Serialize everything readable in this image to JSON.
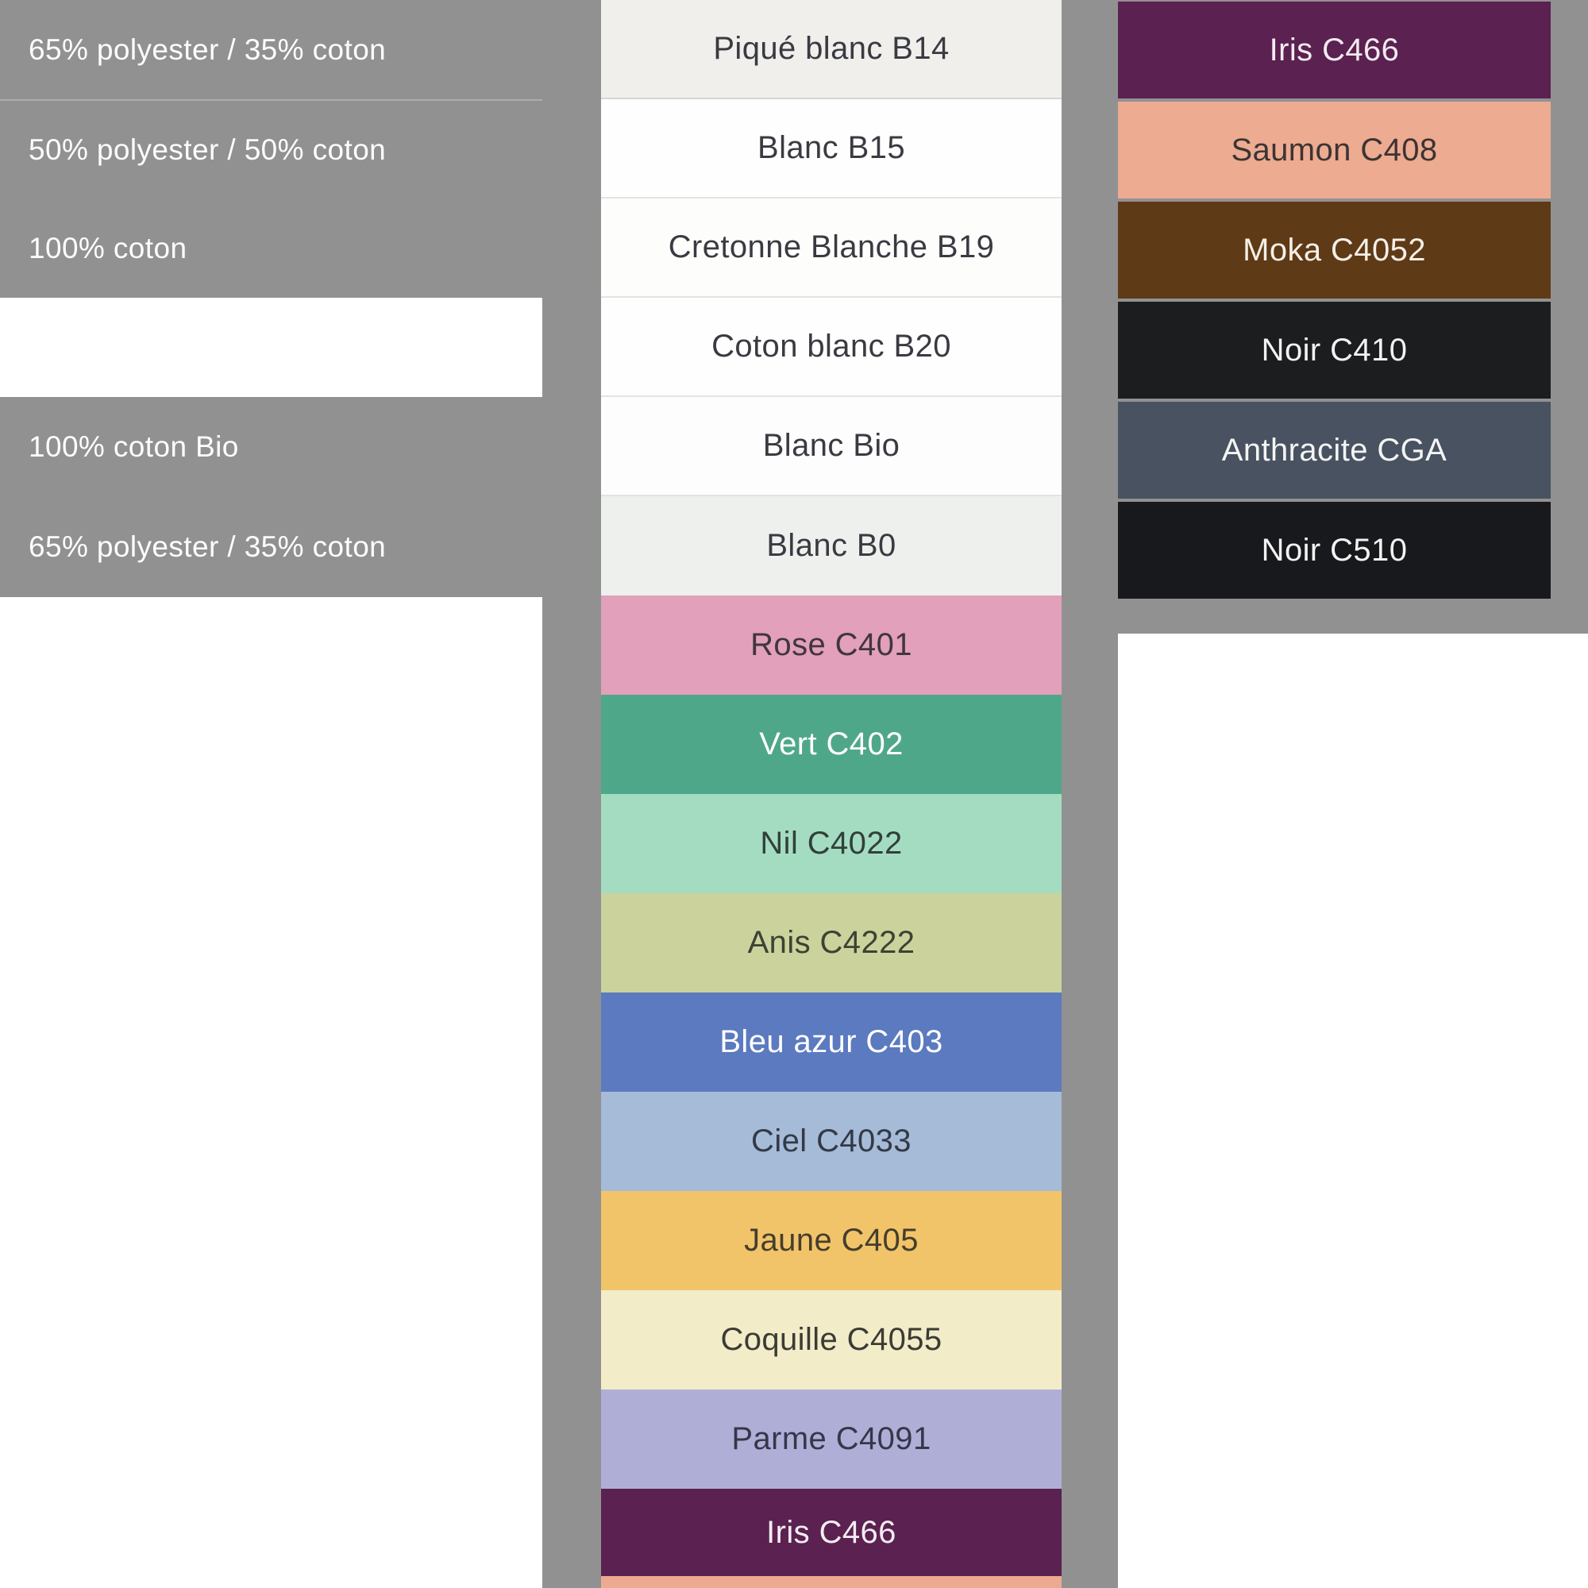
{
  "colors": {
    "background_gray": "#919191",
    "page_white": "#ffffff",
    "charcoal_text": "#3a3a42",
    "white_text": "#fdfdfd"
  },
  "left_panel": {
    "rows": [
      {
        "label": "65% polyester / 35% coton"
      },
      {
        "label": "50% polyester / 50% coton",
        "sep": true
      },
      {
        "label": "100% coton"
      },
      {
        "label": "",
        "variant": "white"
      },
      {
        "label": "100% coton Bio"
      },
      {
        "label": "65% polyester / 35% coton",
        "h": 127
      }
    ]
  },
  "middle_column": {
    "swatches": [
      {
        "name": "Piqué blanc B14",
        "bg": "#f1efec",
        "fg": "#3a3a42",
        "tex": "pique",
        "sep": true
      },
      {
        "name": "Blanc B15",
        "bg": "#fefefe",
        "fg": "#3a3a42",
        "sep": true
      },
      {
        "name": "Cretonne Blanche B19",
        "bg": "#fdfdfc",
        "fg": "#3a3a42",
        "sep": true
      },
      {
        "name": "Coton blanc B20",
        "bg": "#fefefe",
        "fg": "#3a3a42",
        "sep": true
      },
      {
        "name": "Blanc Bio",
        "bg": "#fdfdfd",
        "fg": "#3a3a42",
        "sep": true
      },
      {
        "name": "Blanc B0",
        "bg": "#edf0ed",
        "fg": "#3a3a42"
      },
      {
        "name": "Rose C401",
        "bg": "#e2a0ba",
        "fg": "#40363e"
      },
      {
        "name": "Vert C402",
        "bg": "#4fa78a",
        "fg": "#ffffff"
      },
      {
        "name": "Nil C4022",
        "bg": "#a4dcc2",
        "fg": "#31403a"
      },
      {
        "name": "Anis C4222",
        "bg": "#cbd29c",
        "fg": "#3c4234"
      },
      {
        "name": "Bleu azur C403",
        "bg": "#5b7ac0",
        "fg": "#ffffff"
      },
      {
        "name": "Ciel C4033",
        "bg": "#a6bbd8",
        "fg": "#333a46"
      },
      {
        "name": "Jaune C405",
        "bg": "#f2c469",
        "fg": "#453e2e",
        "tex": "jaune"
      },
      {
        "name": "Coquille C4055",
        "bg": "#f2ecc9",
        "fg": "#3b3b35"
      },
      {
        "name": "Parme C4091",
        "bg": "#afaed7",
        "fg": "#37364a"
      },
      {
        "name": "Iris C466",
        "bg": "#5b2150",
        "fg": "#f4edf2",
        "h": 110
      },
      {
        "name": "",
        "bg": "#ecab90",
        "h": 15
      }
    ]
  },
  "right_column": {
    "swatches": [
      {
        "name": "Iris C466",
        "bg": "#5b2150",
        "fg": "#f2ecf0"
      },
      {
        "name": "Saumon C408",
        "bg": "#edab91",
        "fg": "#3c3433"
      },
      {
        "name": "Moka C4052",
        "bg": "#5f3a16",
        "fg": "#f5efe8"
      },
      {
        "name": "Noir C410",
        "bg": "#1b1d1f",
        "fg": "#f2f2f2"
      },
      {
        "name": "Anthracite CGA",
        "bg": "#485260",
        "fg": "#f4f4f4"
      },
      {
        "name": "Noir C510",
        "bg": "#18191c",
        "fg": "#f2f2f2"
      }
    ]
  }
}
